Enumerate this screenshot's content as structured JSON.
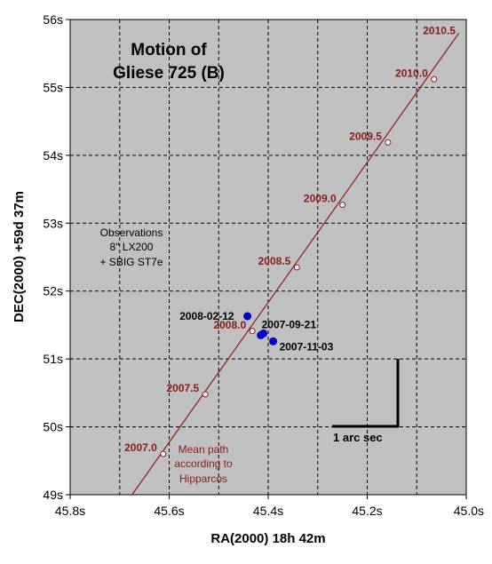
{
  "chart_data": {
    "type": "scatter",
    "title_lines": [
      "Motion of",
      "Gliese 725 (B)"
    ],
    "xlabel": "RA(2000) 18h 42m",
    "ylabel": "DEC(2000) +59d 37m",
    "xlim": [
      45.8,
      45.0
    ],
    "ylim": [
      49,
      56
    ],
    "x_ticks": [
      45.8,
      45.6,
      45.4,
      45.2,
      45.0
    ],
    "x_tick_labels": [
      "45.8s",
      "45.6s",
      "45.4s",
      "45.2s",
      "45.0s"
    ],
    "y_ticks": [
      49,
      50,
      51,
      52,
      53,
      54,
      55,
      56
    ],
    "y_tick_labels": [
      "49s",
      "50s",
      "51s",
      "52s",
      "53s",
      "54s",
      "55s",
      "56s"
    ],
    "grid": true,
    "note_lines": [
      "Observations",
      "8\" LX200",
      "+ SBIG ST7e"
    ],
    "mean_path_lines": [
      "Mean path",
      "according to",
      "Hipparcos"
    ],
    "mean_path_line": {
      "x": [
        45.675,
        45.015
      ],
      "y": [
        49.0,
        55.8
      ]
    },
    "mean_path_epochs": [
      {
        "label": "2007.0",
        "x": 45.612,
        "y": 49.6
      },
      {
        "label": "2007.5",
        "x": 45.527,
        "y": 50.48
      },
      {
        "label": "2008.0",
        "x": 45.432,
        "y": 51.41
      },
      {
        "label": "2008.5",
        "x": 45.342,
        "y": 52.35
      },
      {
        "label": "2009.0",
        "x": 45.25,
        "y": 53.27
      },
      {
        "label": "2009.5",
        "x": 45.158,
        "y": 54.19
      },
      {
        "label": "2010.0",
        "x": 45.065,
        "y": 55.12
      },
      {
        "label": "2010.5",
        "x": 45.018,
        "y": 55.8
      }
    ],
    "observations": [
      {
        "label": "2008-02-12",
        "x": 45.442,
        "y": 51.63
      },
      {
        "label": "2007-09-21",
        "x": 45.415,
        "y": 51.35
      },
      {
        "label": "2007-11-03",
        "x": 45.39,
        "y": 51.26
      }
    ],
    "scale_bar": {
      "label": "1 arc sec"
    },
    "colors": {
      "plot_bg": "#c0c0c0",
      "path": "#8b1a1a",
      "observation": "#0000cc"
    }
  }
}
